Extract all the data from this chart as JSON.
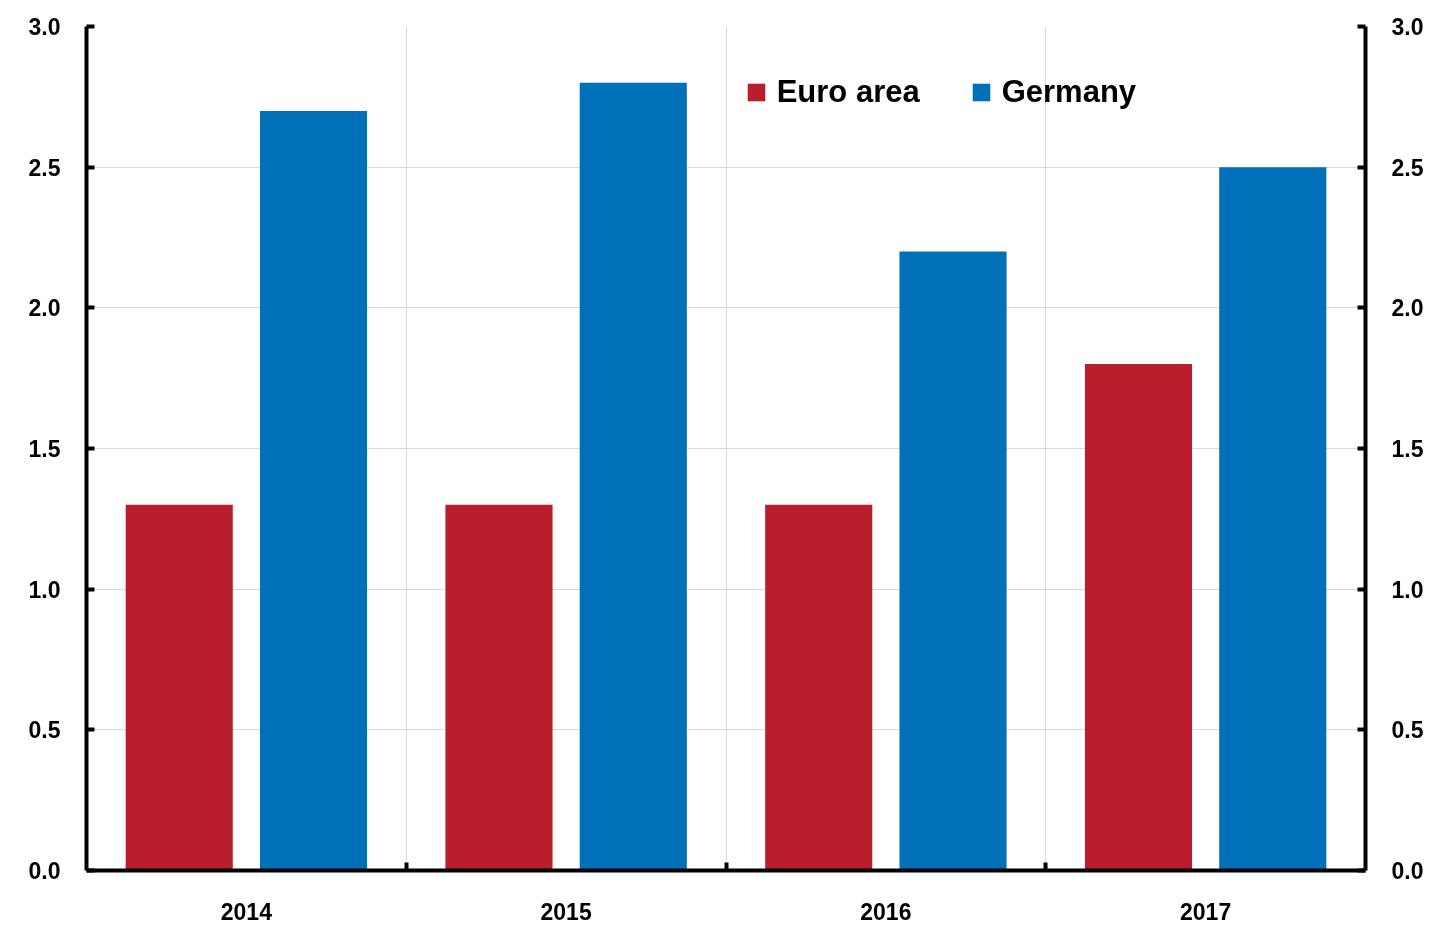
{
  "chart_data": {
    "type": "bar",
    "categories": [
      "2014",
      "2015",
      "2016",
      "2017"
    ],
    "series": [
      {
        "name": "Euro area",
        "color": "#b91e2d",
        "values": [
          1.3,
          1.3,
          1.3,
          1.8
        ]
      },
      {
        "name": "Germany",
        "color": "#0070b8",
        "values": [
          2.7,
          2.8,
          2.2,
          2.5
        ]
      }
    ],
    "ylim": [
      0,
      3
    ],
    "yticks": [
      {
        "value": 0,
        "label": "0.0"
      },
      0.5,
      {
        "value": 1,
        "label": "1.0"
      },
      1.5,
      {
        "value": 2,
        "label": "2.0"
      },
      2.5,
      {
        "value": 3,
        "label": "3.0"
      }
    ],
    "y2lim": [
      0,
      3
    ],
    "y2ticks": [
      {
        "value": 0,
        "label": "0.0"
      },
      0.5,
      {
        "value": 1,
        "label": "1.0"
      },
      1.5,
      {
        "value": 2,
        "label": "2.0"
      },
      2.5,
      {
        "value": 3,
        "label": "3.0"
      }
    ],
    "grid": true,
    "legend": "top right"
  }
}
